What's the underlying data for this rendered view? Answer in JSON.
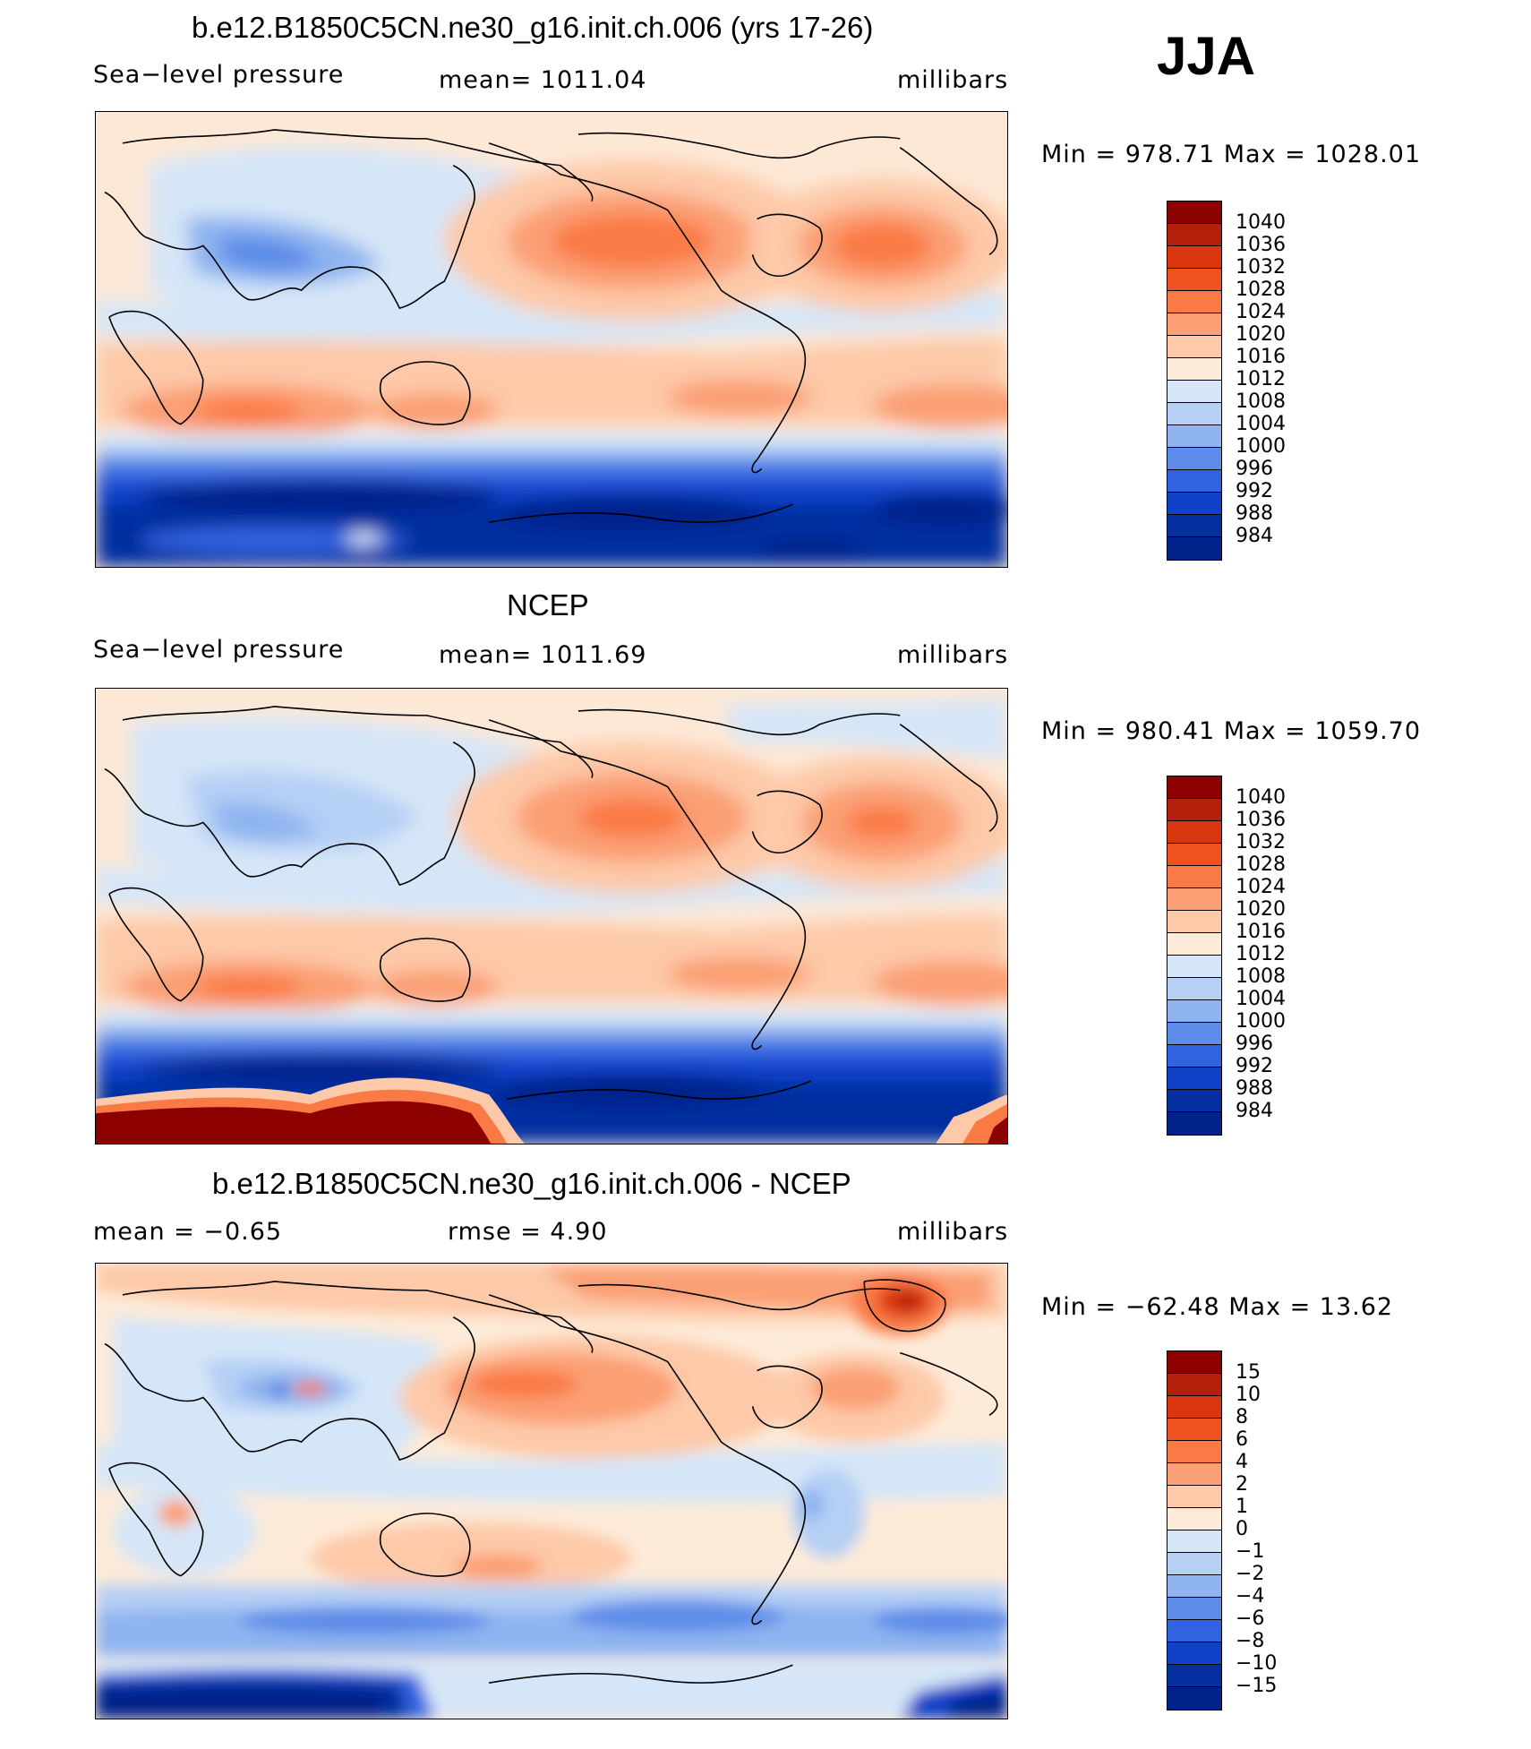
{
  "season": "JJA",
  "panels": [
    {
      "title": "b.e12.B1850C5CN.ne30_g16.init.ch.006 (yrs 17-26)",
      "variable": "Sea−level pressure",
      "stat": "mean=  1011.04",
      "units": "millibars",
      "minmax": "Min  =  978.71  Max  =  1028.01",
      "colorbar_labels": [
        "1040",
        "1036",
        "1032",
        "1028",
        "1024",
        "1020",
        "1016",
        "1012",
        "1008",
        "1004",
        "1000",
        "996",
        "992",
        "988",
        "984"
      ]
    },
    {
      "title": "NCEP",
      "variable": "Sea−level pressure",
      "stat": "mean=  1011.69",
      "units": "millibars",
      "minmax": "Min  =  980.41  Max  =  1059.70",
      "colorbar_labels": [
        "1040",
        "1036",
        "1032",
        "1028",
        "1024",
        "1020",
        "1016",
        "1012",
        "1008",
        "1004",
        "1000",
        "996",
        "992",
        "988",
        "984"
      ]
    },
    {
      "title": "b.e12.B1850C5CN.ne30_g16.init.ch.006 - NCEP",
      "variable": "mean  =    −0.65",
      "stat": "rmse  =      4.90",
      "units": "millibars",
      "minmax": "Min  =  −62.48  Max  =    13.62",
      "colorbar_labels": [
        "15",
        "10",
        "8",
        "6",
        "4",
        "2",
        "1",
        "0",
        "−1",
        "−2",
        "−4",
        "−6",
        "−8",
        "−10",
        "−15"
      ]
    }
  ],
  "colorbar_colors": [
    "#8c0000",
    "#b5200d",
    "#d9360f",
    "#f0521f",
    "#fa7a45",
    "#fb9f74",
    "#fdc9a8",
    "#fdebd9",
    "#d5e6f8",
    "#b5cff5",
    "#8fb4f0",
    "#5d8ce8",
    "#3063e0",
    "#1041c8",
    "#062fa0",
    "#00208a"
  ],
  "colors": {
    "deep_red": "#8c0000",
    "red": "#f06a3a",
    "light_red": "#fdc9a8",
    "cream": "#fde8d6",
    "light_blue": "#d5e6f8",
    "blue": "#8fb4f0",
    "dark_blue": "#1041c8",
    "navy": "#00208a"
  }
}
